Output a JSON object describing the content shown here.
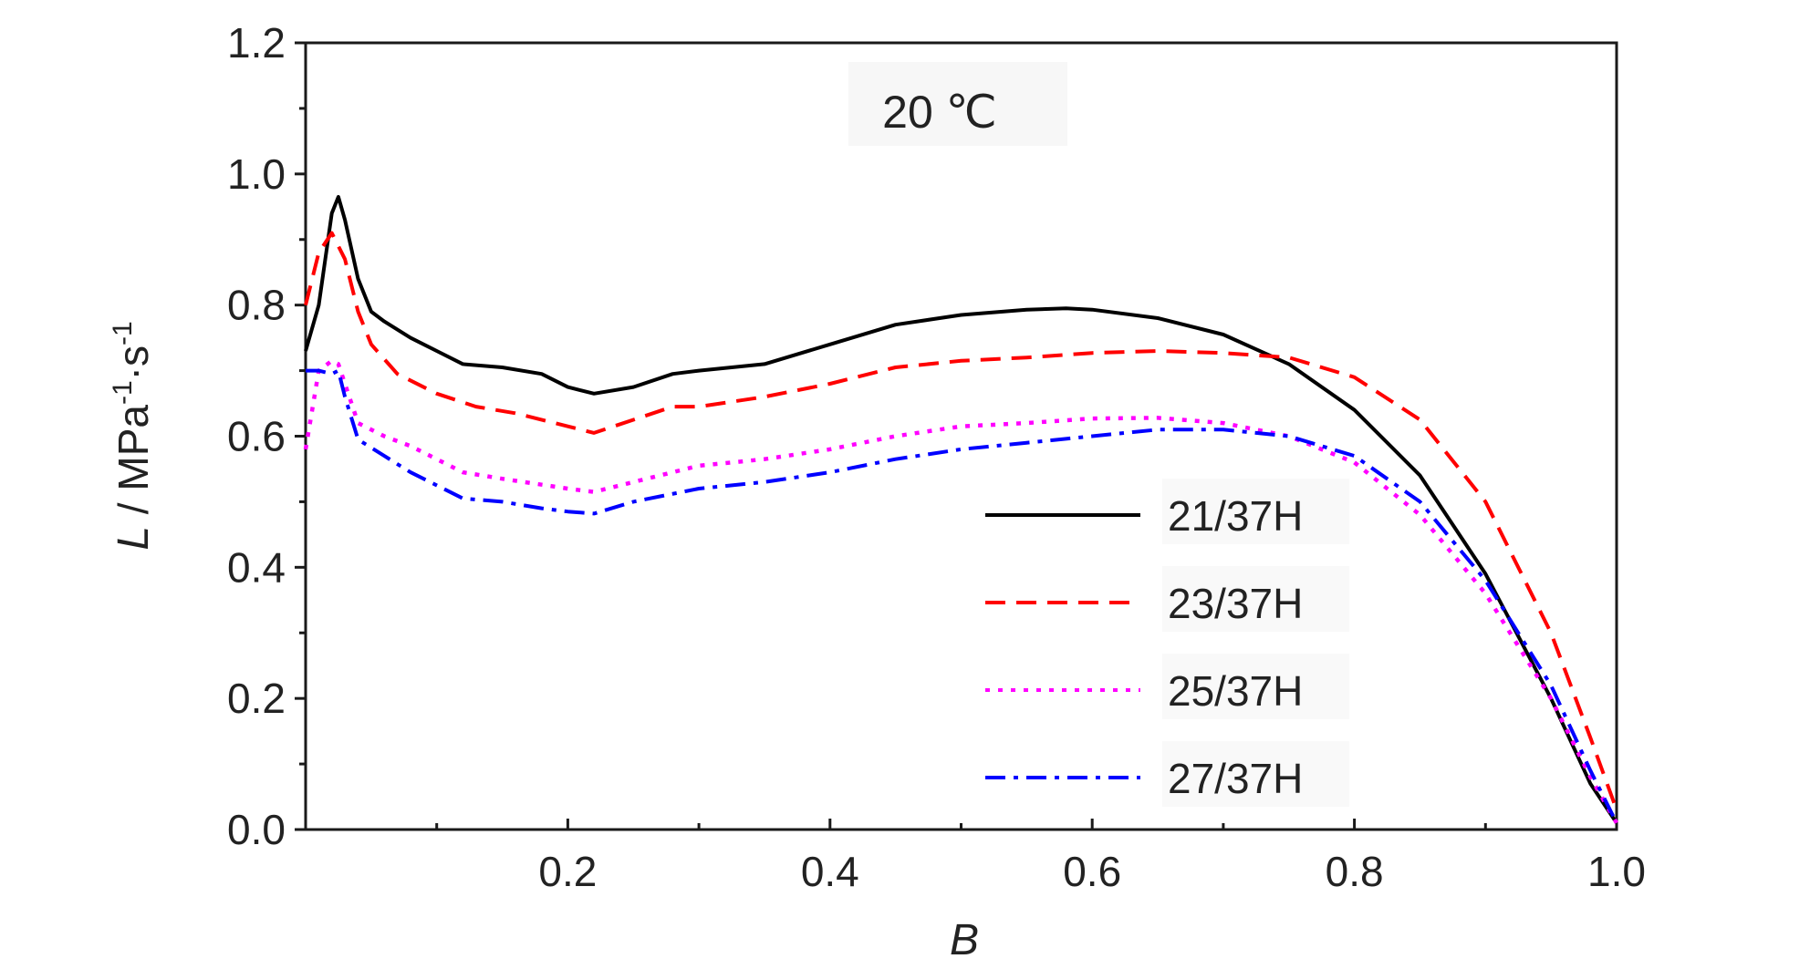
{
  "chart_data": {
    "type": "line",
    "annotation": "20 ℃",
    "xlabel": "B",
    "ylabel": {
      "symbol": "L",
      "unit_prefix": " / MPa",
      "exp1": "-1",
      "unit_mid": "·s",
      "exp2": "-1"
    },
    "xlim": [
      0,
      1.0
    ],
    "ylim": [
      0,
      1.2
    ],
    "xticks": [
      0.2,
      0.4,
      0.6,
      0.8,
      1.0
    ],
    "xtick_labels": [
      "0.2",
      "0.4",
      "0.6",
      "0.8",
      "1.0"
    ],
    "yticks": [
      0.0,
      0.2,
      0.4,
      0.6,
      0.8,
      1.0,
      1.2
    ],
    "ytick_labels": [
      "0.0",
      "0.2",
      "0.4",
      "0.6",
      "0.8",
      "1.0",
      "1.2"
    ],
    "grid": false,
    "legend_position": "lower-right",
    "series": [
      {
        "name": "21/37H",
        "color": "#000000",
        "style": "solid",
        "x": [
          0,
          0.01,
          0.02,
          0.025,
          0.03,
          0.04,
          0.05,
          0.06,
          0.08,
          0.1,
          0.12,
          0.15,
          0.18,
          0.2,
          0.22,
          0.25,
          0.28,
          0.3,
          0.35,
          0.4,
          0.45,
          0.5,
          0.55,
          0.58,
          0.6,
          0.65,
          0.7,
          0.75,
          0.8,
          0.85,
          0.9,
          0.95,
          0.98,
          1.0
        ],
        "y": [
          0.73,
          0.8,
          0.94,
          0.965,
          0.93,
          0.84,
          0.79,
          0.775,
          0.75,
          0.73,
          0.71,
          0.705,
          0.695,
          0.675,
          0.665,
          0.675,
          0.695,
          0.7,
          0.71,
          0.74,
          0.77,
          0.785,
          0.793,
          0.795,
          0.793,
          0.78,
          0.755,
          0.71,
          0.64,
          0.54,
          0.39,
          0.2,
          0.07,
          0.01
        ]
      },
      {
        "name": "23/37H",
        "color": "#ff0000",
        "style": "dashed",
        "x": [
          0,
          0.01,
          0.02,
          0.03,
          0.04,
          0.05,
          0.07,
          0.1,
          0.13,
          0.16,
          0.2,
          0.22,
          0.25,
          0.28,
          0.3,
          0.35,
          0.4,
          0.45,
          0.5,
          0.55,
          0.6,
          0.65,
          0.7,
          0.75,
          0.8,
          0.85,
          0.9,
          0.95,
          0.98,
          1.0
        ],
        "y": [
          0.8,
          0.88,
          0.91,
          0.87,
          0.79,
          0.74,
          0.695,
          0.665,
          0.645,
          0.635,
          0.615,
          0.605,
          0.625,
          0.645,
          0.645,
          0.66,
          0.68,
          0.705,
          0.715,
          0.72,
          0.727,
          0.73,
          0.727,
          0.72,
          0.69,
          0.625,
          0.5,
          0.3,
          0.14,
          0.03
        ]
      },
      {
        "name": "25/37H",
        "color": "#ff00ff",
        "style": "dotted",
        "x": [
          0,
          0.005,
          0.01,
          0.02,
          0.025,
          0.03,
          0.04,
          0.06,
          0.08,
          0.1,
          0.12,
          0.15,
          0.2,
          0.22,
          0.25,
          0.3,
          0.35,
          0.4,
          0.45,
          0.5,
          0.55,
          0.6,
          0.65,
          0.7,
          0.75,
          0.8,
          0.85,
          0.9,
          0.95,
          0.98,
          1.0
        ],
        "y": [
          0.58,
          0.64,
          0.7,
          0.715,
          0.71,
          0.68,
          0.62,
          0.6,
          0.585,
          0.565,
          0.545,
          0.535,
          0.52,
          0.515,
          0.53,
          0.555,
          0.565,
          0.58,
          0.6,
          0.615,
          0.62,
          0.627,
          0.628,
          0.62,
          0.6,
          0.56,
          0.48,
          0.36,
          0.2,
          0.08,
          0.01
        ]
      },
      {
        "name": "27/37H",
        "color": "#0000ff",
        "style": "dashdot",
        "x": [
          0,
          0.01,
          0.02,
          0.025,
          0.03,
          0.04,
          0.06,
          0.08,
          0.1,
          0.12,
          0.15,
          0.18,
          0.2,
          0.22,
          0.25,
          0.3,
          0.35,
          0.4,
          0.45,
          0.5,
          0.55,
          0.6,
          0.65,
          0.7,
          0.75,
          0.8,
          0.85,
          0.9,
          0.95,
          0.98,
          1.0
        ],
        "y": [
          0.7,
          0.7,
          0.695,
          0.7,
          0.66,
          0.595,
          0.57,
          0.545,
          0.525,
          0.505,
          0.5,
          0.49,
          0.485,
          0.482,
          0.5,
          0.52,
          0.53,
          0.545,
          0.565,
          0.58,
          0.59,
          0.6,
          0.61,
          0.61,
          0.6,
          0.57,
          0.5,
          0.38,
          0.22,
          0.09,
          0.01
        ]
      }
    ]
  }
}
